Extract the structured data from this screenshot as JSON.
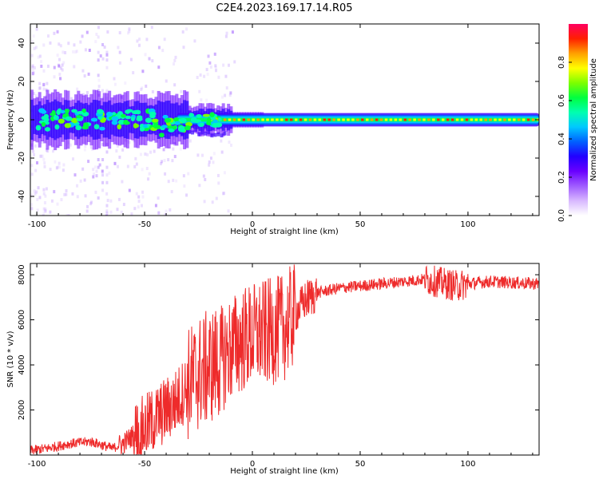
{
  "title": "C2E4.2023.169.17.14.R05",
  "colors": {
    "snr_line": "#ee2b2b",
    "axis": "#000000",
    "spectrogram_background": "#ffffff"
  },
  "colorbar": {
    "label": "Normalized spectral amplitude",
    "ticks": [
      "0.0",
      "0.2",
      "0.4",
      "0.6",
      "0.8"
    ],
    "colormap": [
      "#ffffff",
      "#d8b8ff",
      "#a05cff",
      "#6a00ff",
      "#2200ff",
      "#0060ff",
      "#00c8ff",
      "#00ffb0",
      "#00ff40",
      "#7cff00",
      "#ffff00",
      "#ffa000",
      "#ff2000",
      "#ff0060"
    ]
  },
  "chart_data": [
    {
      "type": "heatmap",
      "name": "spectrogram",
      "xlabel": "Height of straight line (km)",
      "ylabel": "Frequency (Hz)",
      "xlim": [
        -103,
        133
      ],
      "ylim": [
        -50,
        50
      ],
      "xticks": [
        "-100",
        "-50",
        "0",
        "50",
        "100"
      ],
      "yticks": [
        "-40",
        "-20",
        "0",
        "20",
        "40"
      ],
      "zlim": [
        0,
        1
      ],
      "description_of_content": "",
      "band": {
        "center_frequency_hz": 0,
        "core_halfwidth_hz": 1,
        "envelope_halfwidth_hz": 3.5
      }
    },
    {
      "type": "line",
      "name": "snr",
      "xlabel": "Height of straight line (km)",
      "ylabel": "SNR (10 * v/v)",
      "xlim": [
        -103,
        133
      ],
      "ylim": [
        0,
        8500
      ],
      "xticks": [
        "-100",
        "-50",
        "0",
        "50",
        "100"
      ],
      "yticks": [
        "2000",
        "4000",
        "6000",
        "8000"
      ],
      "x": [
        -103,
        -95,
        -85,
        -75,
        -70,
        -65,
        -60,
        -55,
        -50,
        -45,
        -40,
        -35,
        -30,
        -25,
        -20,
        -15,
        -10,
        -5,
        0,
        5,
        10,
        15,
        20,
        25,
        30,
        40,
        50,
        60,
        70,
        80,
        85,
        90,
        95,
        100,
        110,
        120,
        133
      ],
      "y": [
        200,
        300,
        500,
        600,
        450,
        300,
        500,
        900,
        1200,
        1600,
        2000,
        2400,
        3100,
        3600,
        3900,
        4200,
        4700,
        5100,
        5300,
        5400,
        5500,
        5700,
        6300,
        6900,
        7200,
        7400,
        7500,
        7600,
        7700,
        7800,
        7700,
        7600,
        7500,
        7600,
        7700,
        7650,
        7600
      ]
    }
  ]
}
